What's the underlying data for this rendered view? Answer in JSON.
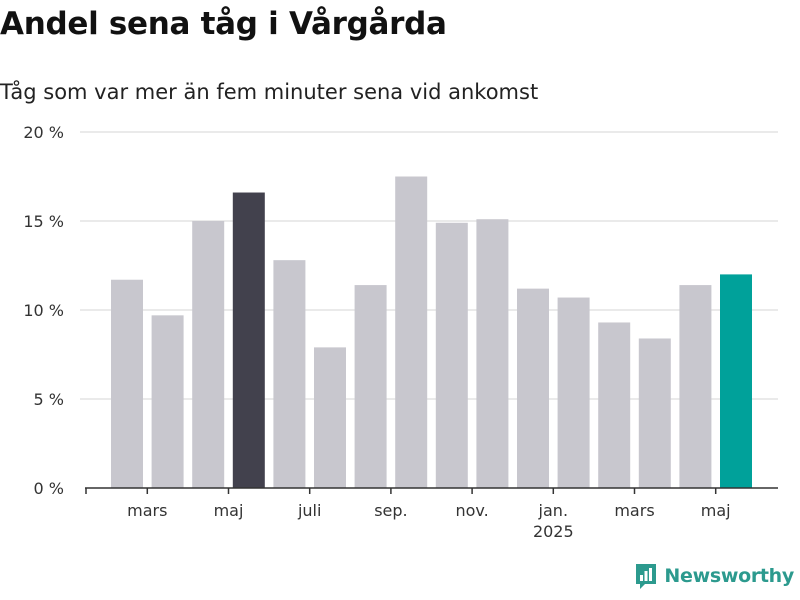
{
  "header": {
    "title": "Andel sena tåg i Vårgårda",
    "subtitle": "Tåg som var mer än fem minuter sena vid ankomst"
  },
  "brand": {
    "name": "Newsworthy",
    "icon": "bar-chart-logo-icon",
    "color": "#2c9a8e"
  },
  "colors": {
    "default_bar": "#c8c7ce",
    "prev_year_bar": "#42414d",
    "current_bar": "#00a19a",
    "grid": "#dddddd",
    "axis": "#333333"
  },
  "chart_data": {
    "type": "bar",
    "title": "Andel sena tåg i Vårgårda",
    "subtitle": "Tåg som var mer än fem minuter sena vid ankomst",
    "xlabel": "",
    "ylabel": "",
    "ylim": [
      0,
      20
    ],
    "yticks": [
      0,
      5,
      10,
      15,
      20
    ],
    "ytick_labels": [
      "0 %",
      "5 %",
      "10 %",
      "15 %",
      "20 %"
    ],
    "grid": true,
    "categories": [
      "2024-02",
      "2024-03",
      "2024-04",
      "2024-05",
      "2024-06",
      "2024-07",
      "2024-08",
      "2024-09",
      "2024-10",
      "2024-11",
      "2024-12",
      "2025-01",
      "2025-02",
      "2025-03",
      "2025-04",
      "2025-05"
    ],
    "values": [
      11.7,
      9.7,
      15.0,
      16.6,
      12.8,
      7.9,
      11.4,
      17.5,
      14.9,
      15.1,
      11.2,
      10.7,
      9.3,
      8.4,
      11.4,
      12.0
    ],
    "highlight": {
      "2024-05": "prev_year_bar",
      "2025-05": "current_bar"
    },
    "x_tick_labels": [
      {
        "category": "2024-03",
        "label": "mars"
      },
      {
        "category": "2024-05",
        "label": "maj"
      },
      {
        "category": "2024-07",
        "label": "juli"
      },
      {
        "category": "2024-09",
        "label": "sep."
      },
      {
        "category": "2024-11",
        "label": "nov."
      },
      {
        "category": "2025-01",
        "label": "jan.",
        "sublabel": "2025"
      },
      {
        "category": "2025-03",
        "label": "mars"
      },
      {
        "category": "2025-05",
        "label": "maj"
      }
    ]
  }
}
